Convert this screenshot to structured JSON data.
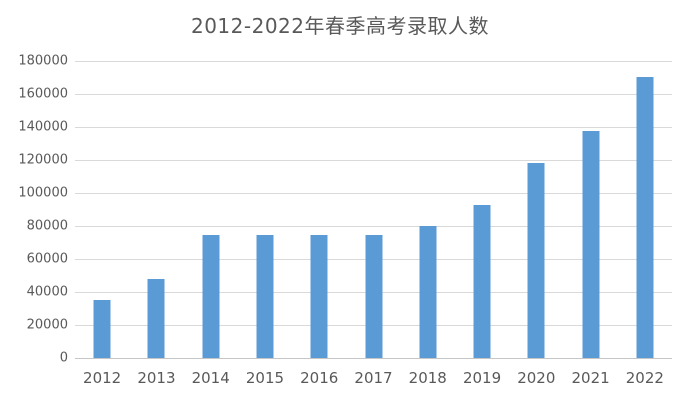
{
  "chart_data": {
    "type": "bar",
    "title": "2012-2022年春季高考录取人数",
    "categories": [
      "2012",
      "2013",
      "2014",
      "2015",
      "2016",
      "2017",
      "2018",
      "2019",
      "2020",
      "2021",
      "2022"
    ],
    "values": [
      35000,
      48000,
      74500,
      74500,
      74500,
      74500,
      80000,
      93000,
      118000,
      137500,
      170500
    ],
    "xlabel": "",
    "ylabel": "",
    "ylim": [
      0,
      180000
    ],
    "ytick_interval": 20000,
    "ytick_labels": [
      "0",
      "20000",
      "40000",
      "60000",
      "80000",
      "100000",
      "120000",
      "140000",
      "160000",
      "180000"
    ],
    "grid": true,
    "legend": false,
    "bar_color": "#5b9bd5",
    "gridline_color": "#d9d9d9",
    "text_color": "#595959"
  }
}
